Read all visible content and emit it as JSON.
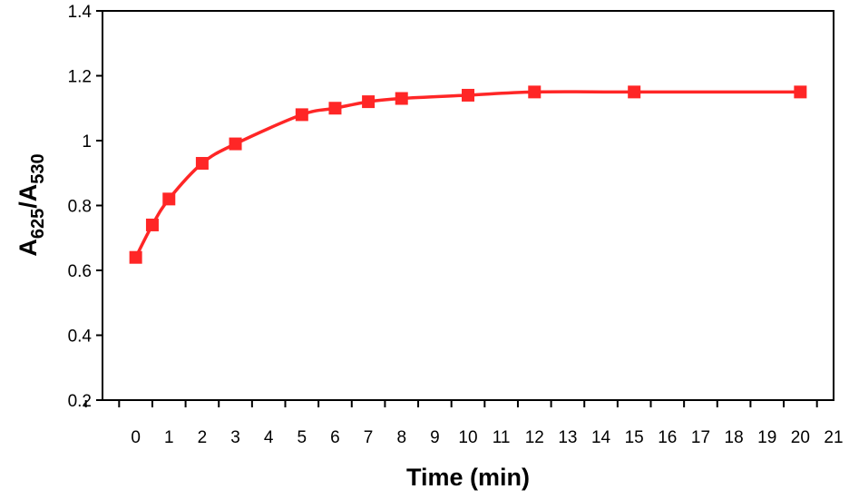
{
  "chart_data": {
    "type": "line",
    "title": "",
    "xlabel": "Time (min)",
    "ylabel": {
      "parts": [
        {
          "text": "A",
          "sub": false
        },
        {
          "text": "625",
          "sub": true
        },
        {
          "text": "/A",
          "sub": false
        },
        {
          "text": "530",
          "sub": true
        }
      ]
    },
    "xlim": [
      -1,
      21
    ],
    "ylim": [
      0.2,
      1.4
    ],
    "x_tick_labels": [
      "0",
      "1",
      "2",
      "3",
      "4",
      "5",
      "6",
      "7",
      "8",
      "9",
      "10",
      "11",
      "12",
      "13",
      "14",
      "15",
      "16",
      "17",
      "18",
      "19",
      "20",
      "21"
    ],
    "y_ticks": [
      0.2,
      0.4,
      0.6,
      0.8,
      1,
      1.2,
      1.4
    ],
    "y_tick_labels": [
      "0.2",
      "0.4",
      "0.6",
      "0.8",
      "1",
      "1.2",
      "1.4"
    ],
    "grid": false,
    "legend": "none",
    "series": [
      {
        "color": "#ff2626",
        "marker": "square",
        "points": [
          {
            "x": 0,
            "y": 0.64
          },
          {
            "x": 0.5,
            "y": 0.74
          },
          {
            "x": 1,
            "y": 0.82
          },
          {
            "x": 2,
            "y": 0.93
          },
          {
            "x": 3,
            "y": 0.99
          },
          {
            "x": 5,
            "y": 1.08
          },
          {
            "x": 6,
            "y": 1.1
          },
          {
            "x": 7,
            "y": 1.12
          },
          {
            "x": 8,
            "y": 1.13
          },
          {
            "x": 10,
            "y": 1.14
          },
          {
            "x": 12,
            "y": 1.15
          },
          {
            "x": 15,
            "y": 1.15
          },
          {
            "x": 20,
            "y": 1.15
          }
        ]
      }
    ]
  }
}
